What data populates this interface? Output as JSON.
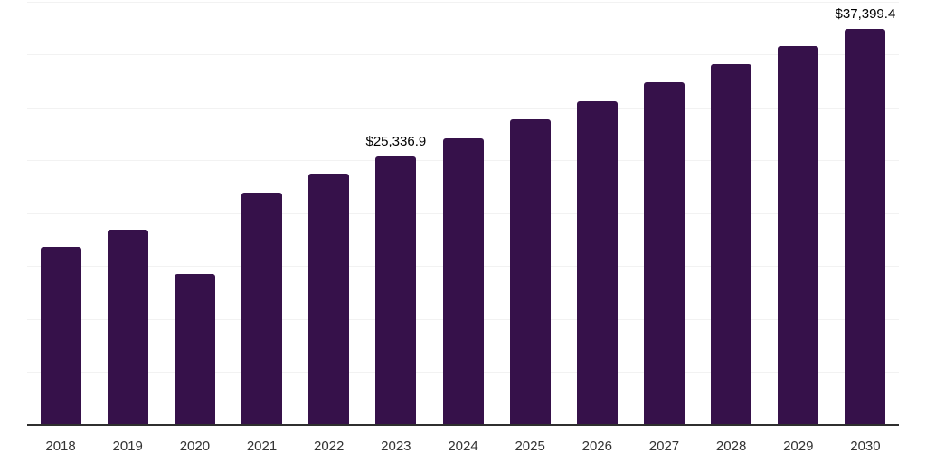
{
  "chart_data": {
    "type": "bar",
    "title": "",
    "xlabel": "",
    "ylabel": "",
    "categories": [
      "2018",
      "2019",
      "2020",
      "2021",
      "2022",
      "2023",
      "2024",
      "2025",
      "2026",
      "2027",
      "2028",
      "2029",
      "2030"
    ],
    "values": [
      16800,
      18400,
      14300,
      21900,
      23700,
      25336.9,
      27100,
      28900,
      30600,
      32400,
      34100,
      35800,
      37399.4
    ],
    "data_labels": [
      "",
      "",
      "",
      "",
      "",
      "$25,336.9",
      "",
      "",
      "",
      "",
      "",
      "",
      "$37,399.4"
    ],
    "ylim": [
      0,
      40000
    ],
    "gridline_step": 5000,
    "grid": true,
    "legend": false,
    "y_axis_labels_visible": false
  },
  "colors": {
    "bar": "#36114a",
    "gridline": "#f2f2f2",
    "axis_line": "#2f2f2f",
    "tick_label": "#333333",
    "data_label": "#000000",
    "background": "#ffffff"
  }
}
